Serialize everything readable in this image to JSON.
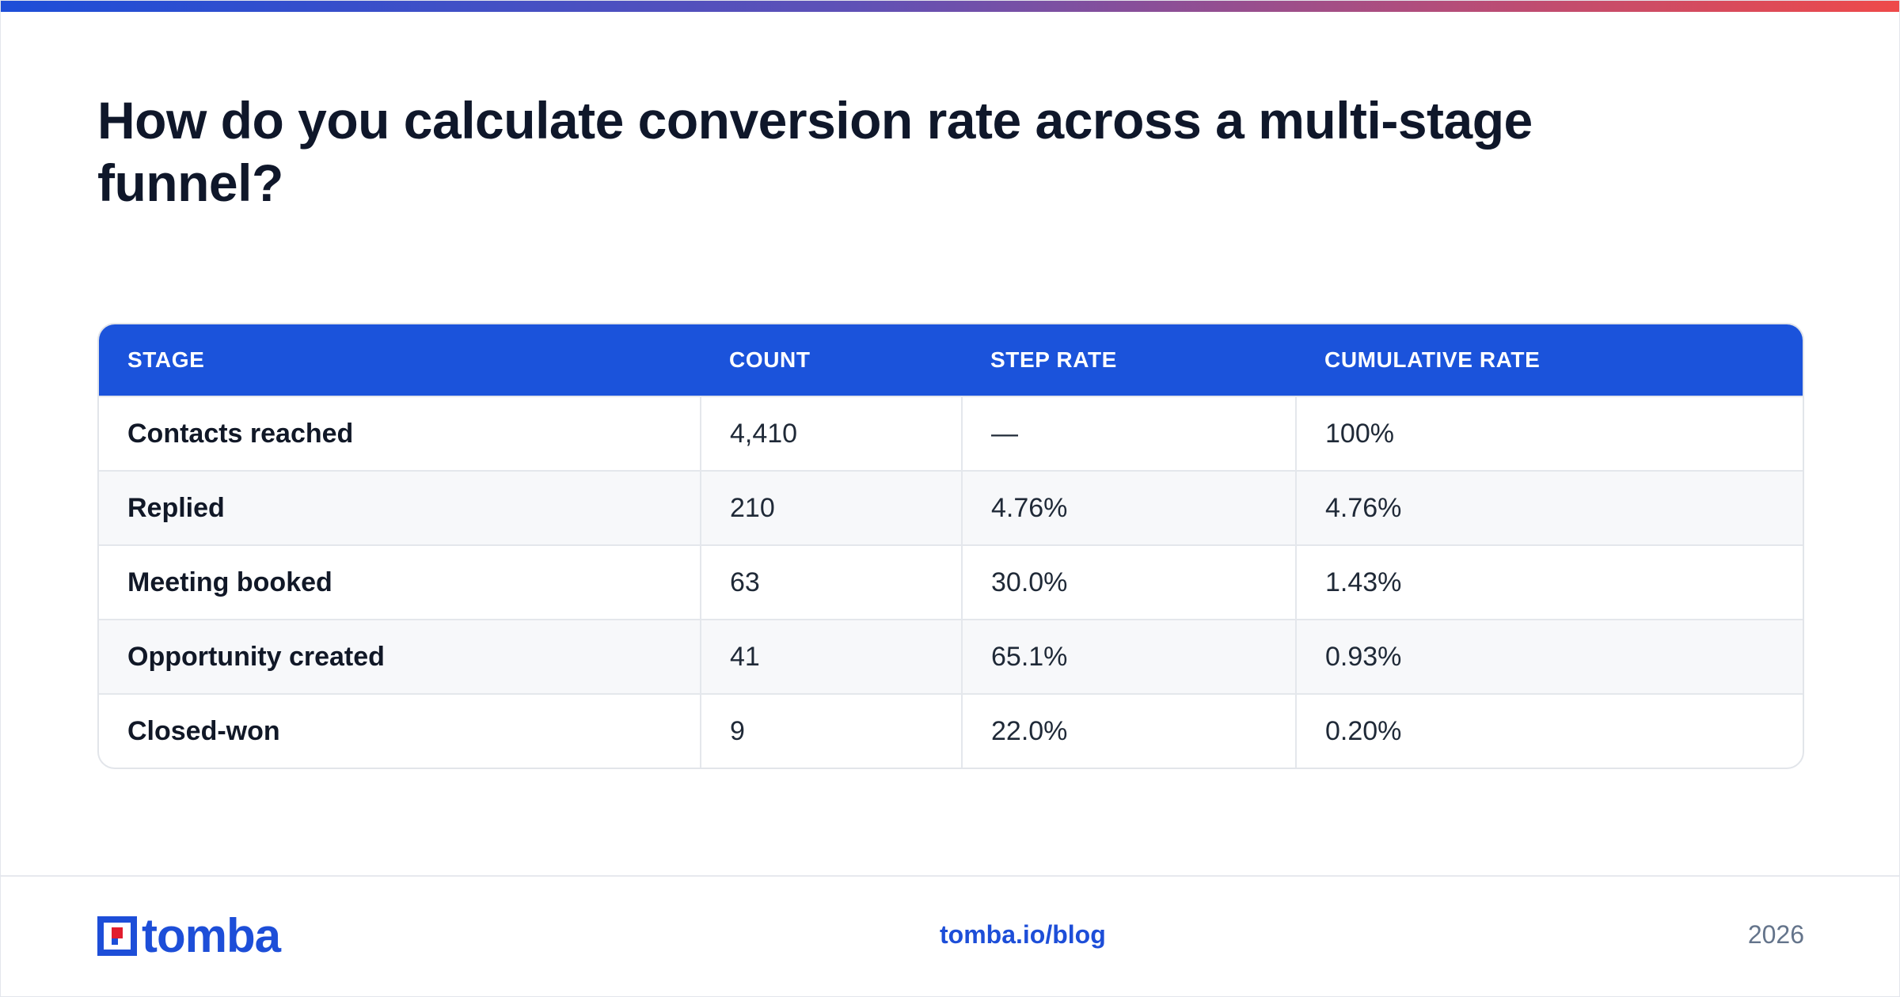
{
  "colors": {
    "accent": "#1b53db",
    "title_text": "#0f172a",
    "logo_red": "#e11d2e"
  },
  "title": "How do you calculate conversion rate across a multi-stage funnel?",
  "table": {
    "headers": [
      "STAGE",
      "COUNT",
      "STEP RATE",
      "CUMULATIVE RATE"
    ],
    "rows": [
      [
        "Contacts reached",
        "4,410",
        "—",
        "100%"
      ],
      [
        "Replied",
        "210",
        "4.76%",
        "4.76%"
      ],
      [
        "Meeting booked",
        "63",
        "30.0%",
        "1.43%"
      ],
      [
        "Opportunity created",
        "41",
        "65.1%",
        "0.93%"
      ],
      [
        "Closed-won",
        "9",
        "22.0%",
        "0.20%"
      ]
    ]
  },
  "footer": {
    "logo_text": "tomba",
    "logo_icon": "tomba-logo-icon",
    "link": "tomba.io/blog",
    "year": "2026"
  }
}
